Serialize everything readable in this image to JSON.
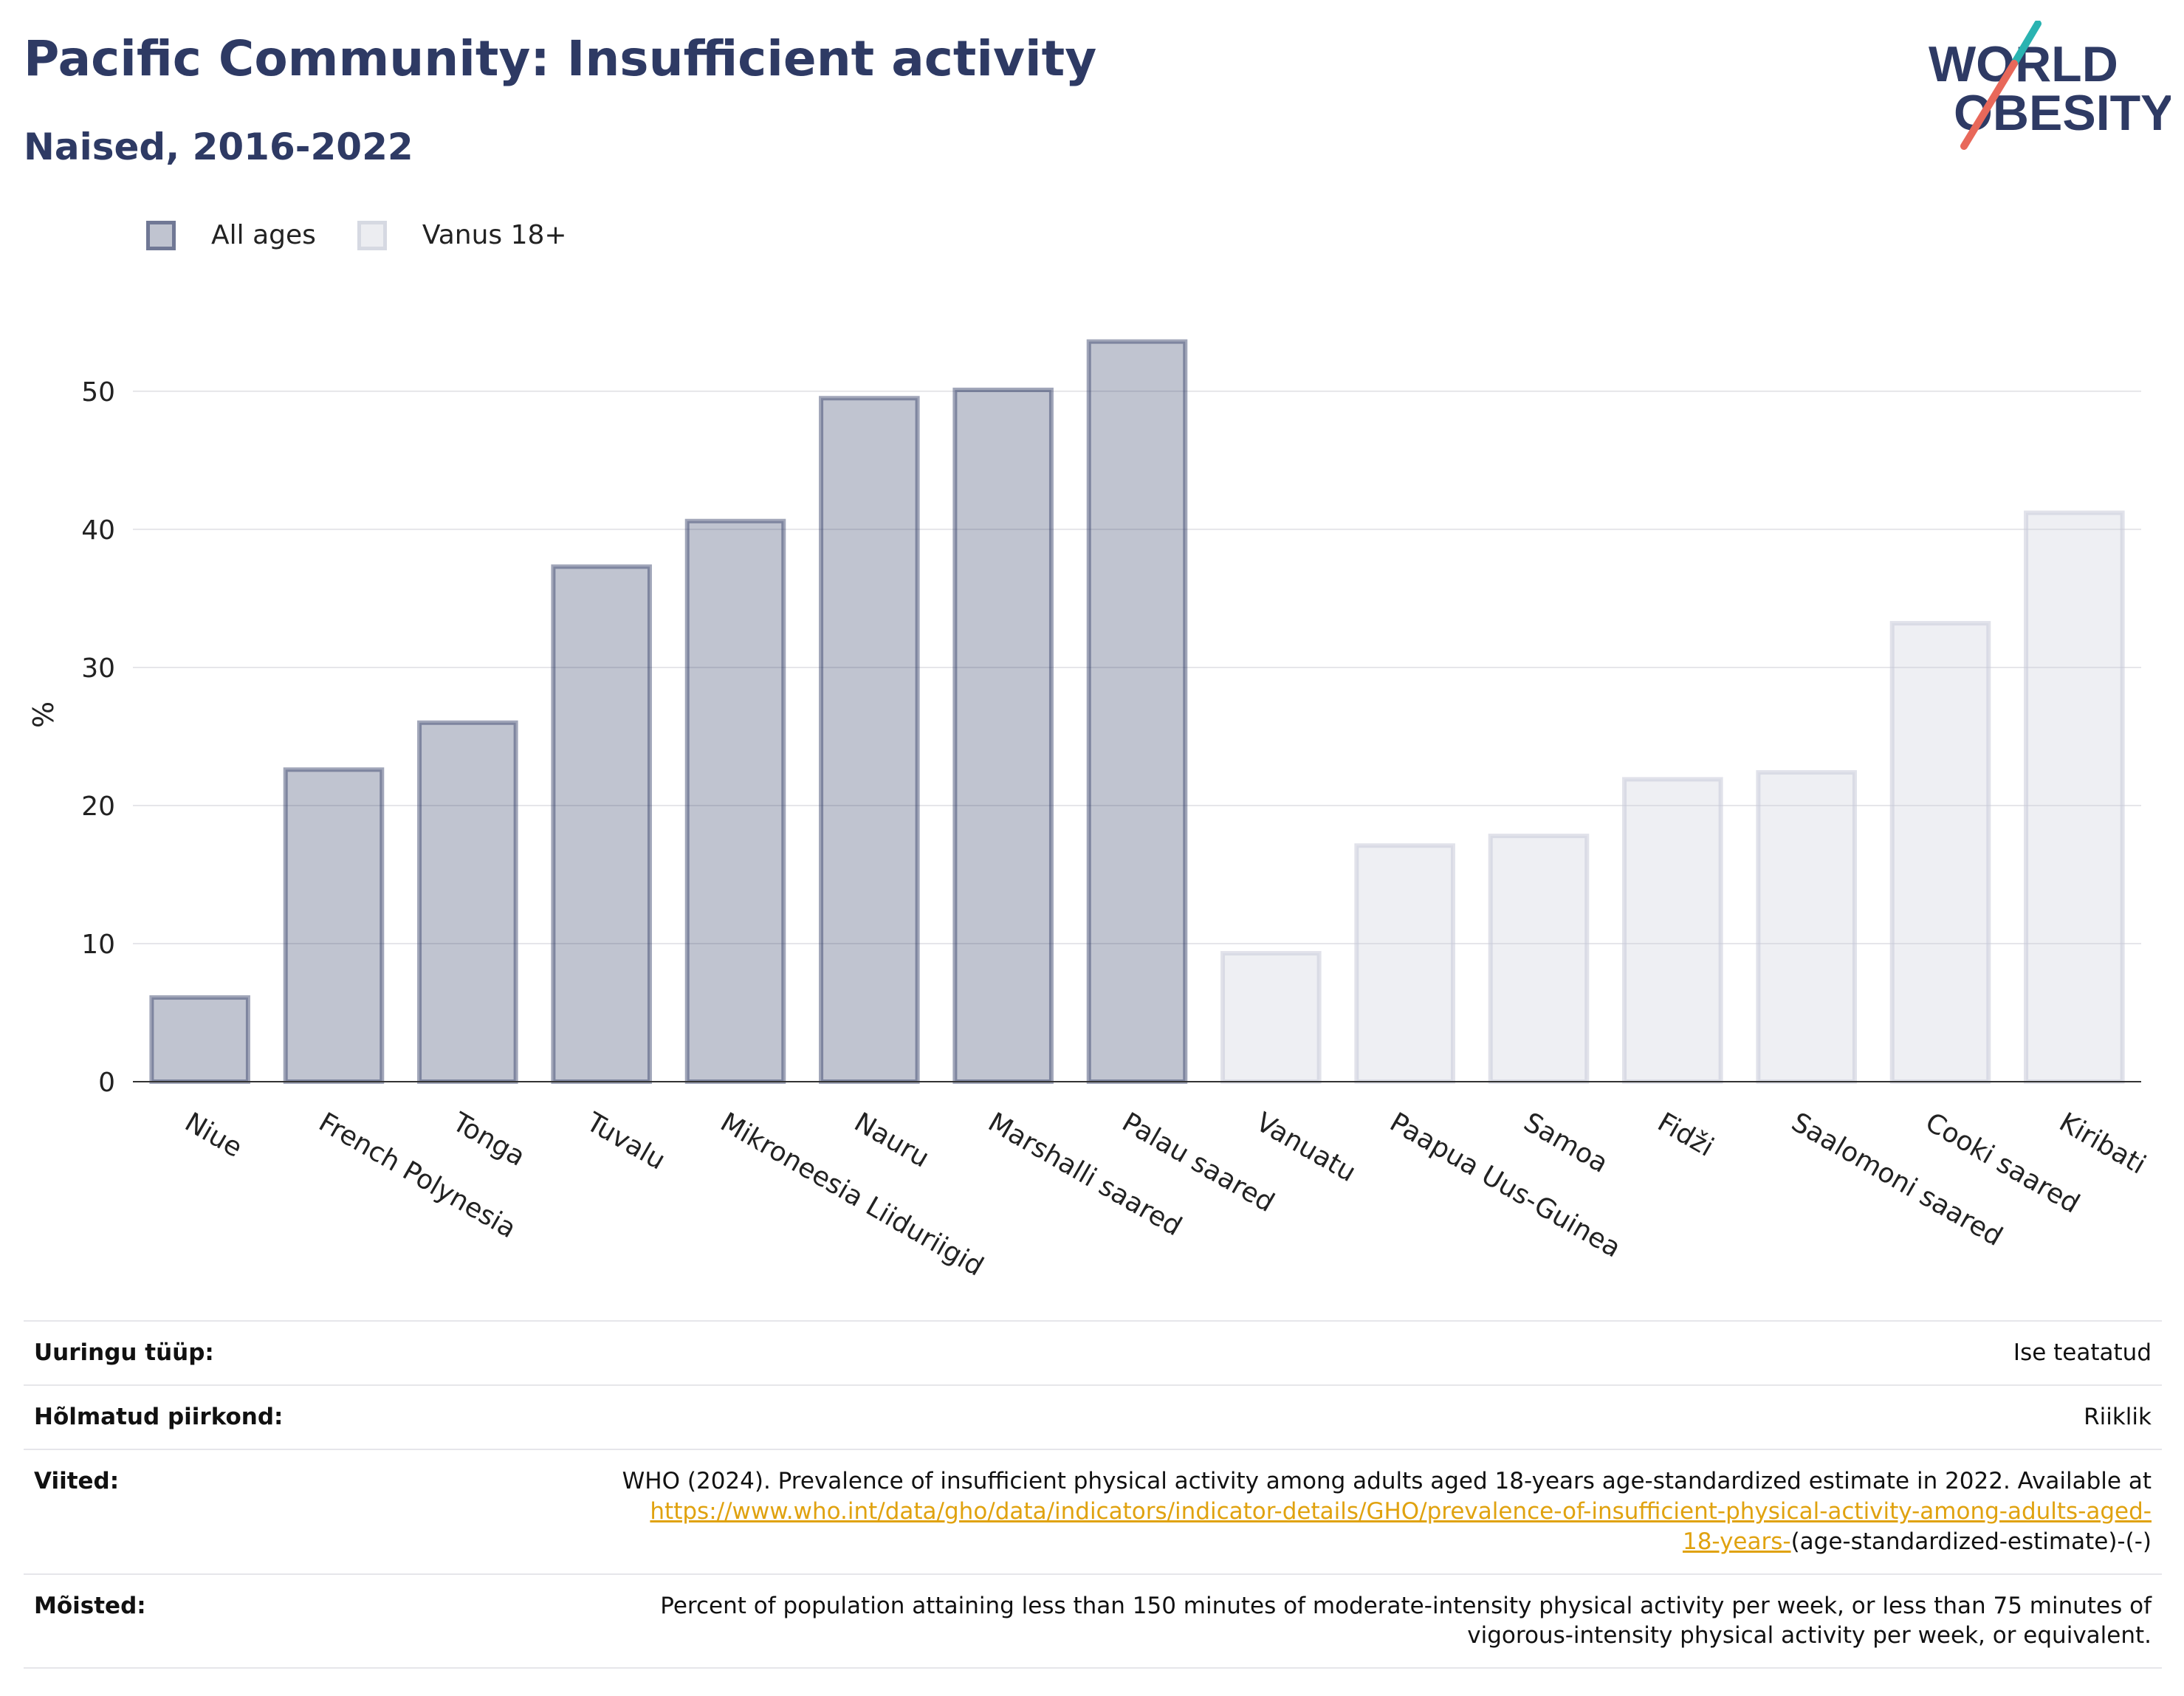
{
  "header": {
    "title": "Pacific Community: Insufficient activity",
    "subtitle": "Naised, 2016-2022"
  },
  "logo": {
    "line1": "WORLD",
    "line2": "OBESITY"
  },
  "chart_data": {
    "type": "bar",
    "ylabel": "%",
    "ylim": [
      0,
      57
    ],
    "yticks": [
      0,
      10,
      20,
      30,
      40,
      50
    ],
    "grid": true,
    "legend_position": "top-left",
    "series": [
      {
        "name": "All ages",
        "color": "#2e3a64",
        "categories": [
          "Niue",
          "French Polynesia",
          "Tonga",
          "Tuvalu",
          "Mikroneesia Liiduriigid",
          "Nauru",
          "Marshalli saared",
          "Palau saared"
        ],
        "values": [
          6.1,
          22.6,
          26.0,
          37.3,
          40.6,
          49.5,
          50.1,
          53.6
        ]
      },
      {
        "name": "Vanus 18+",
        "color": "#c8cbd8",
        "categories": [
          "Vanuatu",
          "Paapua Uus-Guinea",
          "Samoa",
          "Fidži",
          "Saalomoni saared",
          "Cooki saared",
          "Kiribati"
        ],
        "values": [
          9.3,
          17.1,
          17.8,
          21.9,
          22.4,
          33.2,
          41.2
        ]
      }
    ]
  },
  "info": {
    "rows": [
      {
        "key": "Uuringu tüüp:",
        "value": "Ise teatatud"
      },
      {
        "key": "Hõlmatud piirkond:",
        "value": "Riiklik"
      },
      {
        "key": "Viited:",
        "value_pre": "WHO (2024). Prevalence of insufficient physical activity among adults aged 18-years age-standardized estimate in 2022. Available at",
        "link_line1": "https://www.who.int/data/gho/data/indicators/indicator-details/GHO/prevalence-of-insufficient-physical-activity-among-adults-aged-",
        "link_line2": "18-years-",
        "value_post": "(age-standardized-estimate)-(-)"
      },
      {
        "key": "Mõisted:",
        "value_line1": "Percent of population attaining less than 150 minutes of moderate-intensity physical activity per week, or less than 75 minutes of",
        "value_line2": "vigorous-intensity physical activity per week, or equivalent."
      }
    ]
  }
}
